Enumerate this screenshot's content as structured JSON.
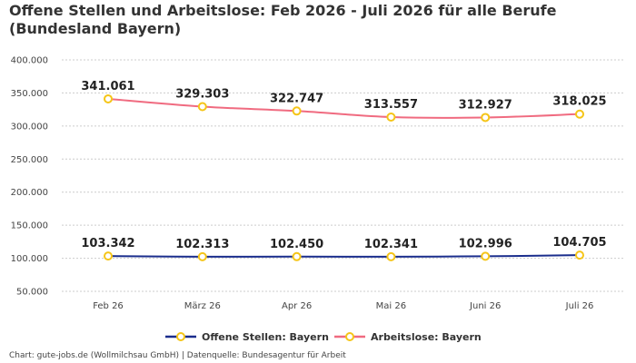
{
  "chart_data": {
    "type": "line",
    "title": "Offene Stellen und Arbeitslose: Feb 2026 - Juli 2026 für alle Berufe (Bundesland Bayern)",
    "categories": [
      "Feb 26",
      "März 26",
      "Apr 26",
      "Mai 26",
      "Juni 26",
      "Juli 26"
    ],
    "y_ticks": [
      "50.000",
      "100.000",
      "150.000",
      "200.000",
      "250.000",
      "300.000",
      "350.000",
      "400.000"
    ],
    "ylim": [
      50000,
      400000
    ],
    "grid": true,
    "legend": "bottom",
    "series": [
      {
        "name": "Offene Stellen: Bayern",
        "color": "#1a2d8c",
        "marker_color": "#f5c518",
        "values": [
          103342,
          102313,
          102450,
          102341,
          102996,
          104705
        ],
        "labels": [
          "103.342",
          "102.313",
          "102.450",
          "102.341",
          "102.996",
          "104.705"
        ]
      },
      {
        "name": "Arbeitslose: Bayern",
        "color": "#f06b80",
        "marker_color": "#f5c518",
        "values": [
          341061,
          329303,
          322747,
          313557,
          312927,
          318025
        ],
        "labels": [
          "341.061",
          "329.303",
          "322.747",
          "313.557",
          "312.927",
          "318.025"
        ]
      }
    ]
  },
  "footer": "Chart: gute-jobs.de (Wollmilchsau GmbH) | Datenquelle: Bundesagentur für Arbeit"
}
